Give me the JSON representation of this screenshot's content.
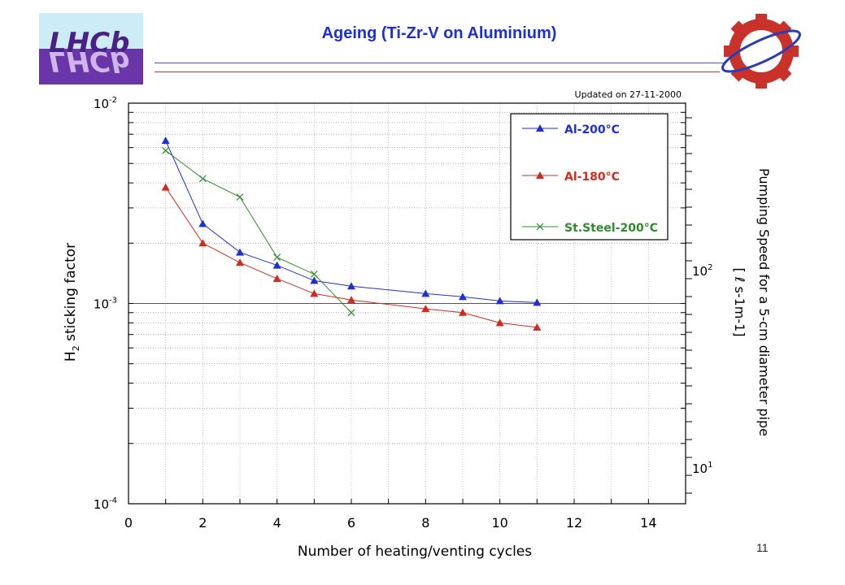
{
  "slide": {
    "title": "Ageing (Ti-Zr-V on Aluminium)",
    "page_number": "11",
    "logo_left": "LHCb",
    "logo_right": "CERN-gear-logo"
  },
  "colors": {
    "title": "#1a2fd6",
    "series_al200": "#1f2fd0",
    "series_al180": "#d32a1e",
    "series_ss200": "#2e8b2e",
    "rule_blue": "#3f54c8",
    "rule_red": "#c33a2e"
  },
  "chart_data": {
    "type": "line",
    "annotation": "Updated on  27-11-2000",
    "xlabel": "Number of heating/venting cycles",
    "ylabel_main": "H",
    "ylabel_sub": "2",
    "ylabel_rest": " sticking factor",
    "y2label_line1": "Pumping Speed for a 5-cm diameter pipe",
    "y2label_line2": "[ ℓ s-1m-1]",
    "xlim": [
      0,
      15
    ],
    "ylim": [
      0.0001,
      0.01
    ],
    "yscale": "log",
    "x_ticks": [
      "0",
      "2",
      "4",
      "6",
      "8",
      "10",
      "12",
      "14"
    ],
    "y_ticks": [
      {
        "base": "10",
        "exp": "-2"
      },
      {
        "base": "10",
        "exp": "-3"
      },
      {
        "base": "10",
        "exp": "-4"
      }
    ],
    "y2_ticks": [
      {
        "base": "10",
        "exp": "2"
      },
      {
        "base": "10",
        "exp": "1"
      }
    ],
    "grid": true,
    "legend_position": "top-right",
    "series": [
      {
        "name": "Al-200°C",
        "marker": "triangle",
        "color": "#1f2fd0",
        "x": [
          1,
          2,
          3,
          4,
          5,
          6,
          8,
          9,
          10,
          11
        ],
        "y": [
          0.0065,
          0.0025,
          0.0018,
          0.00155,
          0.0013,
          0.00122,
          0.00112,
          0.00108,
          0.00103,
          0.00101
        ]
      },
      {
        "name": "Al-180°C",
        "marker": "triangle",
        "color": "#d32a1e",
        "x": [
          1,
          2,
          3,
          4,
          5,
          6,
          8,
          9,
          10,
          11
        ],
        "y": [
          0.0038,
          0.002,
          0.0016,
          0.00133,
          0.00112,
          0.00104,
          0.00094,
          0.0009,
          0.0008,
          0.00076
        ]
      },
      {
        "name": "St.Steel-200°C",
        "marker": "x",
        "color": "#2e8b2e",
        "x": [
          1,
          2,
          3,
          4,
          5,
          6
        ],
        "y": [
          0.0058,
          0.0042,
          0.0034,
          0.0017,
          0.0014,
          0.0009
        ]
      }
    ]
  }
}
